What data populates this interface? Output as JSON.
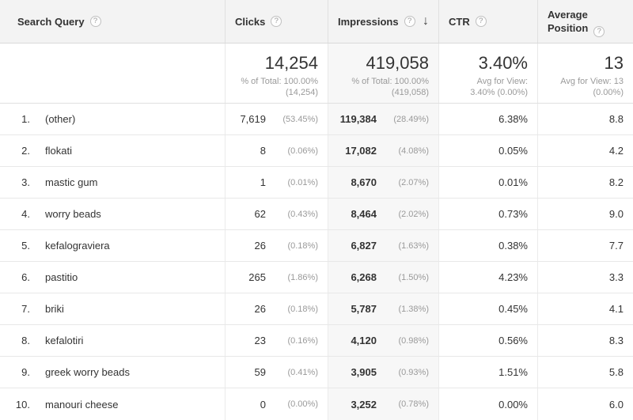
{
  "colors": {
    "header_bg": "#f3f3f3",
    "sorted_column_bg": "#f7f7f7",
    "border": "#e8e8e8",
    "secondary_text": "#9a9a9a"
  },
  "icons": {
    "help_glyph": "?",
    "sort_desc_glyph": "↓"
  },
  "table": {
    "columns": [
      {
        "label": "Search Query"
      },
      {
        "label": "Clicks"
      },
      {
        "label": "Impressions",
        "sort": "descending"
      },
      {
        "label": "CTR"
      },
      {
        "label": "Average Position"
      }
    ],
    "summary": {
      "clicks": {
        "value": "14,254",
        "sub1": "% of Total: 100.00%",
        "sub2": "(14,254)"
      },
      "impressions": {
        "value": "419,058",
        "sub1": "% of Total: 100.00%",
        "sub2": "(419,058)"
      },
      "ctr": {
        "value": "3.40%",
        "sub1": "Avg for View:",
        "sub2": "3.40% (0.00%)"
      },
      "avg_position": {
        "value": "13",
        "sub1": "Avg for View: 13",
        "sub2": "(0.00%)"
      }
    },
    "rows": [
      {
        "rank": "1.",
        "query": "(other)",
        "clicks": "7,619",
        "clicks_pct": "(53.45%)",
        "impressions": "119,384",
        "impressions_pct": "(28.49%)",
        "ctr": "6.38%",
        "avg_position": "8.8"
      },
      {
        "rank": "2.",
        "query": "flokati",
        "clicks": "8",
        "clicks_pct": "(0.06%)",
        "impressions": "17,082",
        "impressions_pct": "(4.08%)",
        "ctr": "0.05%",
        "avg_position": "4.2"
      },
      {
        "rank": "3.",
        "query": "mastic gum",
        "clicks": "1",
        "clicks_pct": "(0.01%)",
        "impressions": "8,670",
        "impressions_pct": "(2.07%)",
        "ctr": "0.01%",
        "avg_position": "8.2"
      },
      {
        "rank": "4.",
        "query": "worry beads",
        "clicks": "62",
        "clicks_pct": "(0.43%)",
        "impressions": "8,464",
        "impressions_pct": "(2.02%)",
        "ctr": "0.73%",
        "avg_position": "9.0"
      },
      {
        "rank": "5.",
        "query": "kefalograviera",
        "clicks": "26",
        "clicks_pct": "(0.18%)",
        "impressions": "6,827",
        "impressions_pct": "(1.63%)",
        "ctr": "0.38%",
        "avg_position": "7.7"
      },
      {
        "rank": "6.",
        "query": "pastitio",
        "clicks": "265",
        "clicks_pct": "(1.86%)",
        "impressions": "6,268",
        "impressions_pct": "(1.50%)",
        "ctr": "4.23%",
        "avg_position": "3.3"
      },
      {
        "rank": "7.",
        "query": "briki",
        "clicks": "26",
        "clicks_pct": "(0.18%)",
        "impressions": "5,787",
        "impressions_pct": "(1.38%)",
        "ctr": "0.45%",
        "avg_position": "4.1"
      },
      {
        "rank": "8.",
        "query": "kefalotiri",
        "clicks": "23",
        "clicks_pct": "(0.16%)",
        "impressions": "4,120",
        "impressions_pct": "(0.98%)",
        "ctr": "0.56%",
        "avg_position": "8.3"
      },
      {
        "rank": "9.",
        "query": "greek worry beads",
        "clicks": "59",
        "clicks_pct": "(0.41%)",
        "impressions": "3,905",
        "impressions_pct": "(0.93%)",
        "ctr": "1.51%",
        "avg_position": "5.8"
      },
      {
        "rank": "10.",
        "query": "manouri cheese",
        "clicks": "0",
        "clicks_pct": "(0.00%)",
        "impressions": "3,252",
        "impressions_pct": "(0.78%)",
        "ctr": "0.00%",
        "avg_position": "6.0"
      }
    ]
  }
}
